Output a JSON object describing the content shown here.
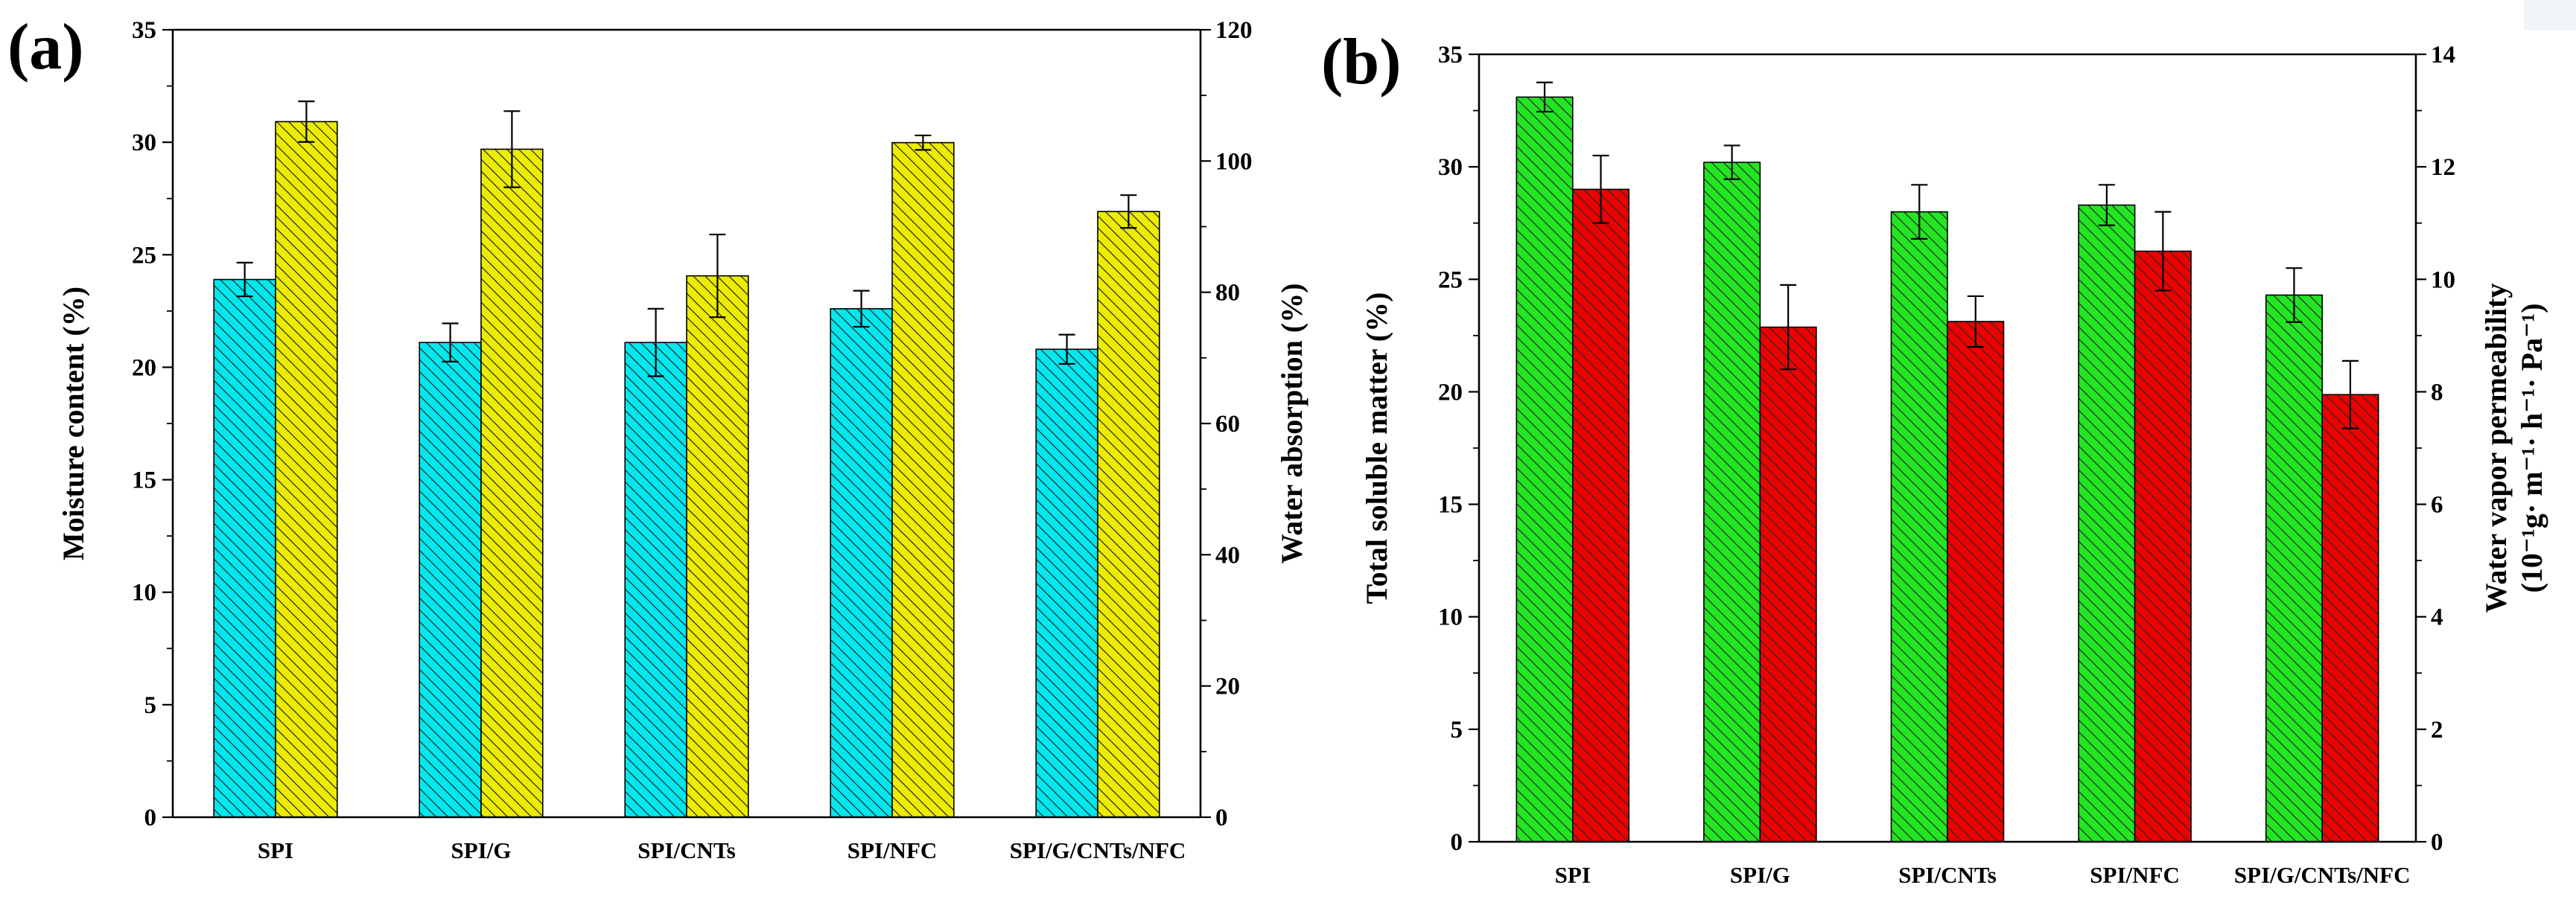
{
  "chart_data": [
    {
      "type": "bar",
      "panel_label": "(a)",
      "categories": [
        "SPI",
        "SPI/G",
        "SPI/CNTs",
        "SPI/NFC",
        "SPI/G/CNTs/NFC"
      ],
      "ylabel": "Moisture content (%)",
      "ylabel_right": "Water absorption (%)",
      "ylim": [
        0,
        35
      ],
      "yticks": [
        "0",
        "5",
        "10",
        "15",
        "20",
        "25",
        "30",
        "35"
      ],
      "ylim_right": [
        0,
        120
      ],
      "yticks_right": [
        "0",
        "20",
        "40",
        "60",
        "80",
        "100",
        "120"
      ],
      "series": [
        {
          "name": "Moisture content",
          "axis": "left",
          "color": "#00e8ee",
          "hatch": "#2a2a2a",
          "values": [
            23.9,
            21.1,
            21.1,
            22.6,
            20.8
          ],
          "errors": [
            0.75,
            0.85,
            1.5,
            0.8,
            0.65
          ]
        },
        {
          "name": "Water absorption",
          "axis": "right",
          "color": "#ecec00",
          "hatch": "#2a2a2a",
          "values": [
            106.0,
            101.8,
            82.5,
            102.8,
            92.3
          ],
          "errors": [
            3.1,
            5.8,
            6.3,
            1.1,
            2.5
          ]
        }
      ]
    },
    {
      "type": "bar",
      "panel_label": "(b)",
      "categories": [
        "SPI",
        "SPI/G",
        "SPI/CNTs",
        "SPI/NFC",
        "SPI/G/CNTs/NFC"
      ],
      "ylabel": "Total soluble matter (%)",
      "ylabel_right_line1": "Water vapor permeability",
      "ylabel_right_line2": "(10⁻¹g· m⁻¹· h⁻¹· Pa⁻¹)",
      "ylim": [
        0,
        35
      ],
      "yticks": [
        "0",
        "5",
        "10",
        "15",
        "20",
        "25",
        "30",
        "35"
      ],
      "ylim_right": [
        0,
        14
      ],
      "yticks_right": [
        "0",
        "2",
        "4",
        "6",
        "8",
        "10",
        "12",
        "14"
      ],
      "series": [
        {
          "name": "Total soluble matter",
          "axis": "left",
          "color": "#22e622",
          "hatch": "#2a2a2a",
          "values": [
            33.1,
            30.2,
            28.0,
            28.3,
            24.3
          ],
          "errors": [
            0.65,
            0.75,
            1.2,
            0.9,
            1.2
          ]
        },
        {
          "name": "Water vapor permeability",
          "axis": "right",
          "color": "#ee0000",
          "hatch": "#2a2a2a",
          "values": [
            11.6,
            9.15,
            9.25,
            10.5,
            7.95
          ],
          "errors": [
            0.6,
            0.75,
            0.45,
            0.7,
            0.6
          ]
        }
      ]
    }
  ]
}
